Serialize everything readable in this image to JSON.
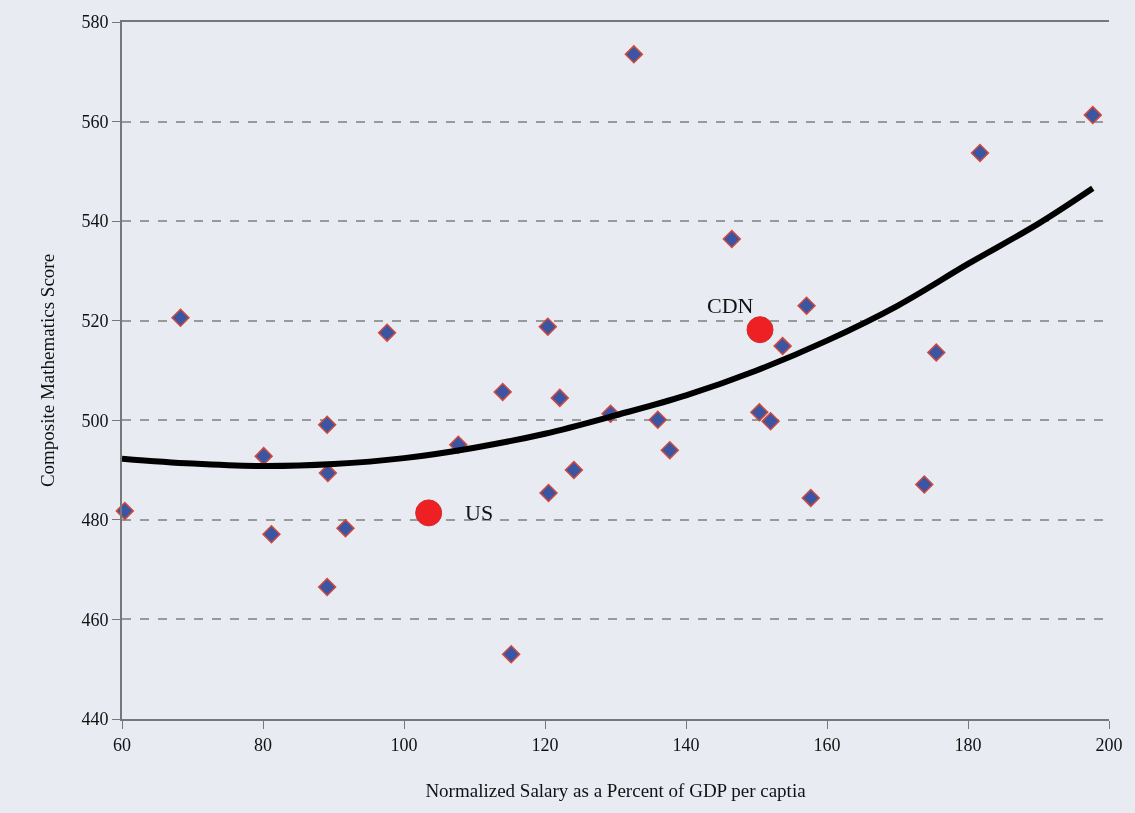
{
  "chart_data": {
    "type": "scatter",
    "xlabel": "Normalized Salary as a Percent of GDP per captia",
    "ylabel": "Composite Mathematics Score",
    "xlim": [
      60,
      200
    ],
    "xticks": [
      60,
      80,
      100,
      120,
      140,
      160,
      180,
      200
    ],
    "ylim": [
      440,
      580
    ],
    "yticks": [
      440,
      460,
      480,
      500,
      520,
      540,
      560,
      580
    ],
    "grid": "y",
    "series": [
      {
        "marker": "diamond",
        "color": "#3a55a4",
        "x": [
          60.4,
          68.3,
          80.1,
          81.2,
          89.1,
          89.2,
          89.1,
          91.7,
          97.6,
          107.7,
          114.0,
          115.2,
          120.4,
          120.5,
          122.1,
          124.1,
          129.3,
          132.6,
          136.0,
          137.7,
          146.5,
          150.4,
          152.0,
          153.7,
          157.1,
          157.7,
          173.8,
          175.5,
          181.7,
          197.7
        ],
        "values": [
          481.8,
          520.6,
          492.8,
          477.1,
          499.1,
          489.4,
          466.5,
          478.3,
          517.6,
          495.1,
          505.7,
          453.0,
          518.8,
          485.4,
          504.5,
          490.0,
          501.3,
          573.5,
          500.1,
          494.0,
          536.4,
          501.6,
          499.8,
          514.9,
          523.0,
          484.4,
          487.1,
          513.6,
          553.7,
          561.3
        ]
      },
      {
        "marker": "circle",
        "color": "#ee2024",
        "x": [
          103.5,
          150.5
        ],
        "values": [
          481.4,
          518.2
        ]
      },
      {
        "type": "line",
        "marker": "none",
        "color": "#000000",
        "x": [
          60,
          70,
          80,
          90,
          100,
          110,
          120,
          130,
          140,
          150,
          160,
          170,
          180,
          190,
          197.7
        ],
        "values": [
          492.3,
          491.3,
          490.8,
          491.2,
          492.4,
          494.5,
          497.3,
          501.0,
          505.0,
          510.0,
          516.0,
          523.0,
          531.4,
          539.5,
          546.6
        ]
      }
    ],
    "annotations": [
      {
        "text": "US",
        "x": 103.5,
        "y": 481.4
      },
      {
        "text": "CDN",
        "x": 150.5,
        "y": 518.2
      }
    ]
  }
}
